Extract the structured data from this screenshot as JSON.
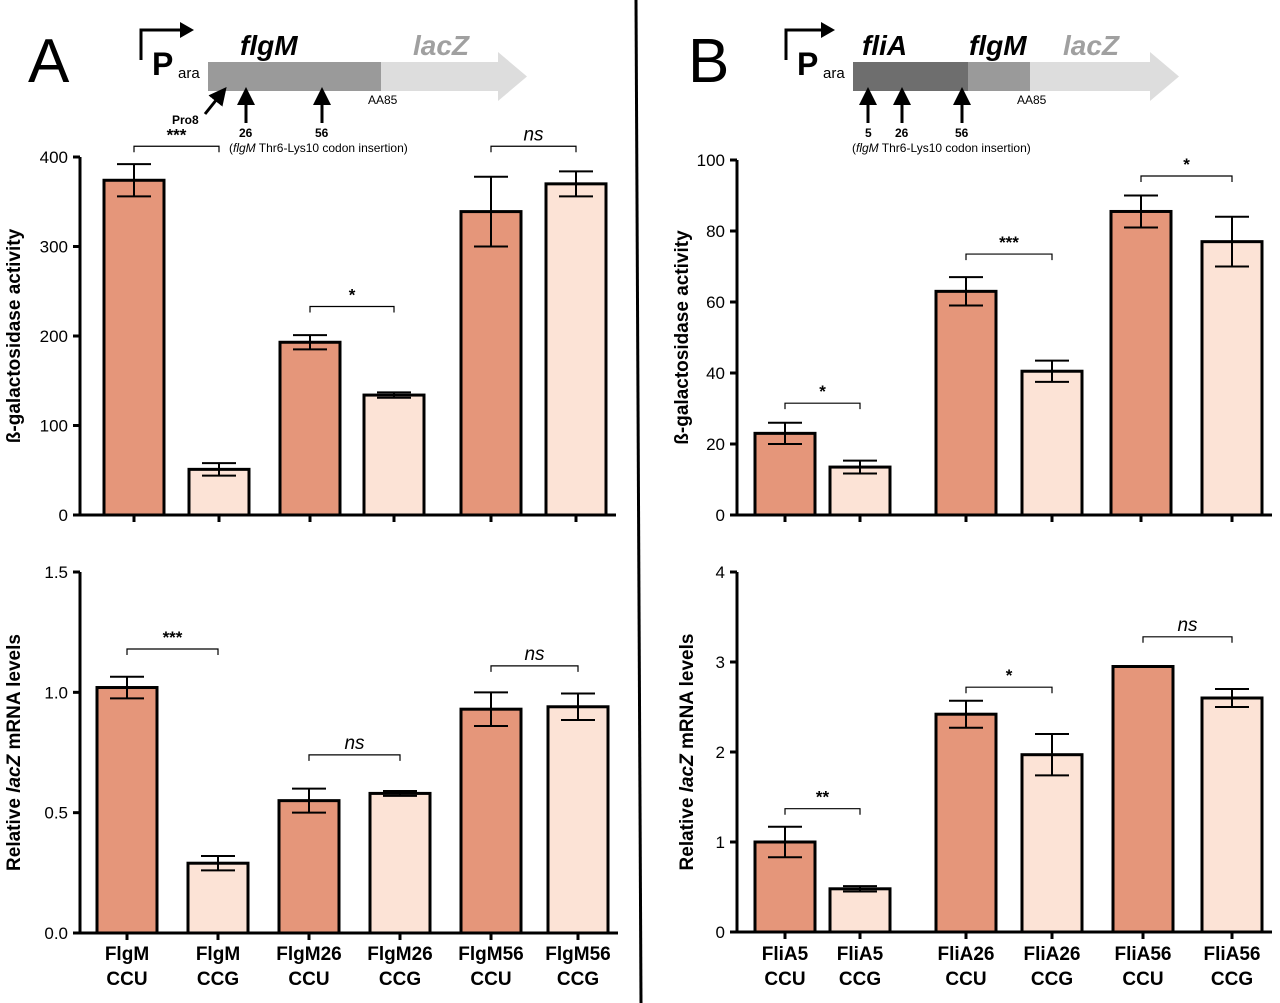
{
  "figure": {
    "colors": {
      "ccu": "#E5967A",
      "ccg": "#FCE3D6",
      "stroke": "#000000",
      "gene_dark": "#6E6E6E",
      "gene_mid": "#9A9A9A",
      "gene_light": "#DDDDDD",
      "lacz_text": "#A0A0A0"
    }
  },
  "panelA": {
    "letter": "A",
    "construct": {
      "promoter": "P",
      "promoter_sub": "ara",
      "gene1": "flgM",
      "reporter": "lacZ",
      "end_label": "AA85",
      "sites": [
        "Pro8",
        "26",
        "56"
      ],
      "note_open": "(",
      "note_gene": "flgM",
      "note_rest": " Thr6-Lys10 codon insertion)"
    },
    "categories": [
      [
        "FlgM",
        "CCU"
      ],
      [
        "FlgM",
        "CCG"
      ],
      [
        "FlgM26",
        "CCU"
      ],
      [
        "FlgM26",
        "CCG"
      ],
      [
        "FlgM56",
        "CCU"
      ],
      [
        "FlgM56",
        "CCG"
      ]
    ]
  },
  "panelB": {
    "letter": "B",
    "construct": {
      "promoter": "P",
      "promoter_sub": "ara",
      "gene1": "fliA",
      "gene2": "flgM",
      "reporter": "lacZ",
      "end_label": "AA85",
      "sites": [
        "5",
        "26",
        "56"
      ],
      "note_open": "(",
      "note_gene": "flgM",
      "note_rest": " Thr6-Lys10 codon insertion)"
    },
    "categories": [
      [
        "FliA5",
        "CCU"
      ],
      [
        "FliA5",
        "CCG"
      ],
      [
        "FliA26",
        "CCU"
      ],
      [
        "FliA26",
        "CCG"
      ],
      [
        "FliA56",
        "CCU"
      ],
      [
        "FliA56",
        "CCG"
      ]
    ]
  },
  "chart_data": [
    {
      "id": "A-top",
      "type": "bar",
      "title": "",
      "ylabel_pre": "ß-galactosidase activity",
      "ylabel_ital": "",
      "ylabel_post": "",
      "ylim": [
        0,
        400
      ],
      "yticks": [
        0,
        100,
        200,
        300,
        400
      ],
      "ytick_labels": [
        "0",
        "100",
        "200",
        "300",
        "400"
      ],
      "values": [
        374,
        51,
        193,
        134,
        339,
        370
      ],
      "errors": [
        18,
        7,
        8,
        3,
        39,
        14
      ],
      "significance": [
        {
          "from": 0,
          "to": 1,
          "label": "***",
          "italic": false,
          "level": 412
        },
        {
          "from": 2,
          "to": 3,
          "label": "*",
          "italic": false,
          "level": 233
        },
        {
          "from": 4,
          "to": 5,
          "label": "ns",
          "italic": true,
          "level": 412
        }
      ]
    },
    {
      "id": "A-bottom",
      "type": "bar",
      "title": "",
      "ylabel_pre": "Relative ",
      "ylabel_ital": "lacZ",
      "ylabel_post": " mRNA levels",
      "ylim": [
        0,
        1.5
      ],
      "yticks": [
        0,
        0.5,
        1.0,
        1.5
      ],
      "ytick_labels": [
        "0.0",
        "0.5",
        "1.0",
        "1.5"
      ],
      "values": [
        1.02,
        0.29,
        0.55,
        0.58,
        0.93,
        0.94
      ],
      "errors": [
        0.045,
        0.03,
        0.05,
        0.01,
        0.07,
        0.055
      ],
      "significance": [
        {
          "from": 0,
          "to": 1,
          "label": "***",
          "italic": false,
          "level": 1.18
        },
        {
          "from": 2,
          "to": 3,
          "label": "ns",
          "italic": true,
          "level": 0.74
        },
        {
          "from": 4,
          "to": 5,
          "label": "ns",
          "italic": true,
          "level": 1.11
        }
      ]
    },
    {
      "id": "B-top",
      "type": "bar",
      "title": "",
      "ylabel_pre": "ß-galactosidase activity",
      "ylabel_ital": "",
      "ylabel_post": "",
      "ylim": [
        0,
        100
      ],
      "yticks": [
        0,
        20,
        40,
        60,
        80,
        100
      ],
      "ytick_labels": [
        "0",
        "20",
        "40",
        "60",
        "80",
        "100"
      ],
      "values": [
        23,
        13.5,
        63,
        40.5,
        85.5,
        77
      ],
      "errors": [
        3,
        1.8,
        4,
        3,
        4.5,
        7
      ],
      "significance": [
        {
          "from": 0,
          "to": 1,
          "label": "*",
          "italic": false,
          "level": 31.5
        },
        {
          "from": 2,
          "to": 3,
          "label": "***",
          "italic": false,
          "level": 73.5
        },
        {
          "from": 4,
          "to": 5,
          "label": "*",
          "italic": false,
          "level": 95.5
        }
      ]
    },
    {
      "id": "B-bottom",
      "type": "bar",
      "title": "",
      "ylabel_pre": "Relative ",
      "ylabel_ital": "lacZ",
      "ylabel_post": " mRNA levels",
      "ylim": [
        0,
        4
      ],
      "yticks": [
        0,
        1,
        2,
        3,
        4
      ],
      "ytick_labels": [
        "0",
        "1",
        "2",
        "3",
        "4"
      ],
      "values": [
        1.0,
        0.48,
        2.42,
        1.97,
        2.95,
        2.6
      ],
      "errors": [
        0.17,
        0.03,
        0.15,
        0.23,
        0,
        0.1
      ],
      "significance": [
        {
          "from": 0,
          "to": 1,
          "label": "**",
          "italic": false,
          "level": 1.37
        },
        {
          "from": 2,
          "to": 3,
          "label": "*",
          "italic": false,
          "level": 2.72
        },
        {
          "from": 4,
          "to": 5,
          "label": "ns",
          "italic": true,
          "level": 3.28
        }
      ]
    }
  ]
}
